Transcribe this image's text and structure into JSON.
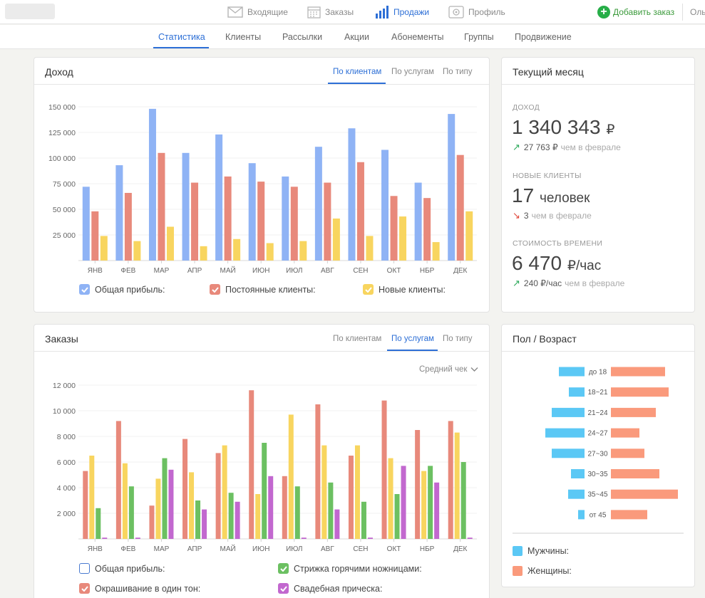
{
  "topnav": {
    "items": [
      {
        "label": "Входящие",
        "icon": "envelope-icon"
      },
      {
        "label": "Заказы",
        "icon": "calendar-icon"
      },
      {
        "label": "Продажи",
        "icon": "bar-chart-icon"
      },
      {
        "label": "Профиль",
        "icon": "profile-icon"
      }
    ],
    "add_order": "Добавить заказ",
    "user": "Оль"
  },
  "subnav": {
    "items": [
      "Статистика",
      "Клиенты",
      "Рассылки",
      "Акции",
      "Абонементы",
      "Группы",
      "Продвижение"
    ]
  },
  "income_card": {
    "title": "Доход",
    "tabs": [
      "По клиентам",
      "По услугам",
      "По типу"
    ],
    "legend": [
      "Общая прибыль:",
      "Постоянные клиенты:",
      "Новые клиенты:"
    ]
  },
  "orders_card": {
    "title": "Заказы",
    "tabs": [
      "По клиентам",
      "По услугам",
      "По типу"
    ],
    "dropdown": "Средний чек",
    "legend": [
      "Общая прибыль:",
      "Стрижка горячими ножницами:",
      "Окрашивание в один тон:",
      "Свадебная прическа:"
    ]
  },
  "current_month": {
    "title": "Текущий месяц",
    "income_label": "ДОХОД",
    "income_value": "1 340 343",
    "income_unit": "₽",
    "income_delta": "27 763 ₽",
    "income_delta_note": "чем в феврале",
    "clients_label": "НОВЫЕ КЛИЕНТЫ",
    "clients_value": "17",
    "clients_unit": "человек",
    "clients_delta": "3",
    "clients_delta_note": "чем в феврале",
    "time_label": "СТОИМОСТЬ ВРЕМЕНИ",
    "time_value": "6 470",
    "time_unit": "₽/час",
    "time_delta": "240 ₽/час",
    "time_delta_note": "чем в феврале"
  },
  "gender_card": {
    "title": "Пол / Возраст",
    "legend": [
      "Мужчины:",
      "Женщины:"
    ]
  },
  "colors": {
    "blue": "#8fb3f5",
    "red": "#e8897b",
    "yellow": "#f8d55f",
    "green": "#6cc062",
    "purple": "#c268cf",
    "men": "#5bc8f5",
    "women": "#fa9a7c",
    "accent": "#2d6fd6"
  },
  "chart_data": [
    {
      "type": "bar",
      "title": "Доход",
      "categories": [
        "ЯНВ",
        "ФЕВ",
        "МАР",
        "АПР",
        "МАЙ",
        "ИЮН",
        "ИЮЛ",
        "АВГ",
        "СЕН",
        "ОКТ",
        "НБР",
        "ДЕК"
      ],
      "ylim": [
        0,
        150000
      ],
      "yticks": [
        25000,
        50000,
        75000,
        100000,
        125000,
        150000
      ],
      "ytick_labels": [
        "25 000",
        "50 000",
        "75 000",
        "100 000",
        "125 000",
        "150 000"
      ],
      "series": [
        {
          "name": "Общая прибыль",
          "color": "#8fb3f5",
          "values": [
            72000,
            93000,
            148000,
            105000,
            123000,
            95000,
            82000,
            111000,
            129000,
            108000,
            76000,
            143000
          ]
        },
        {
          "name": "Постоянные клиенты",
          "color": "#e8897b",
          "values": [
            48000,
            66000,
            105000,
            76000,
            82000,
            77000,
            72000,
            76000,
            96000,
            63000,
            61000,
            103000
          ]
        },
        {
          "name": "Новые клиенты",
          "color": "#f8d55f",
          "values": [
            24000,
            19000,
            33000,
            14000,
            21000,
            17000,
            19000,
            41000,
            24000,
            43000,
            18000,
            48000
          ]
        }
      ]
    },
    {
      "type": "bar",
      "title": "Заказы",
      "categories": [
        "ЯНВ",
        "ФЕВ",
        "МАР",
        "АПР",
        "МАЙ",
        "ИЮН",
        "ИЮЛ",
        "АВГ",
        "СЕН",
        "ОКТ",
        "НБР",
        "ДЕК"
      ],
      "ylim": [
        0,
        12000
      ],
      "yticks": [
        2000,
        4000,
        6000,
        8000,
        10000,
        12000
      ],
      "ytick_labels": [
        "2 000",
        "4 000",
        "6 000",
        "8 000",
        "10 000",
        "12 000"
      ],
      "series": [
        {
          "name": "Окрашивание в один тон",
          "color": "#e8897b",
          "values": [
            5300,
            9200,
            2600,
            7800,
            6700,
            11600,
            4900,
            10500,
            6500,
            10800,
            8500,
            9200
          ]
        },
        {
          "name": "Общая прибыль",
          "color": "#f8d55f",
          "values": [
            6500,
            5900,
            4700,
            5200,
            7300,
            3500,
            9700,
            7300,
            7300,
            6300,
            5300,
            8300
          ]
        },
        {
          "name": "Стрижка горячими ножницами",
          "color": "#6cc062",
          "values": [
            2400,
            4100,
            6300,
            3000,
            3600,
            7500,
            4100,
            4400,
            2900,
            3500,
            5700,
            6000
          ]
        },
        {
          "name": "Свадебная прическа",
          "color": "#c268cf",
          "values": [
            100,
            100,
            5400,
            2300,
            2900,
            4900,
            100,
            2300,
            100,
            5700,
            4400,
            100
          ]
        }
      ]
    },
    {
      "type": "bar",
      "title": "Пол / Возраст",
      "categories": [
        "до 18",
        "18~21",
        "21~24",
        "24~27",
        "27~30",
        "30~35",
        "35~45",
        "от 45"
      ],
      "series": [
        {
          "name": "Мужчины",
          "color": "#5bc8f5",
          "values": [
            36,
            22,
            46,
            55,
            46,
            19,
            23,
            9
          ]
        },
        {
          "name": "Женщины",
          "color": "#fa9a7c",
          "values": [
            76,
            81,
            63,
            40,
            47,
            68,
            94,
            51
          ]
        }
      ]
    }
  ]
}
